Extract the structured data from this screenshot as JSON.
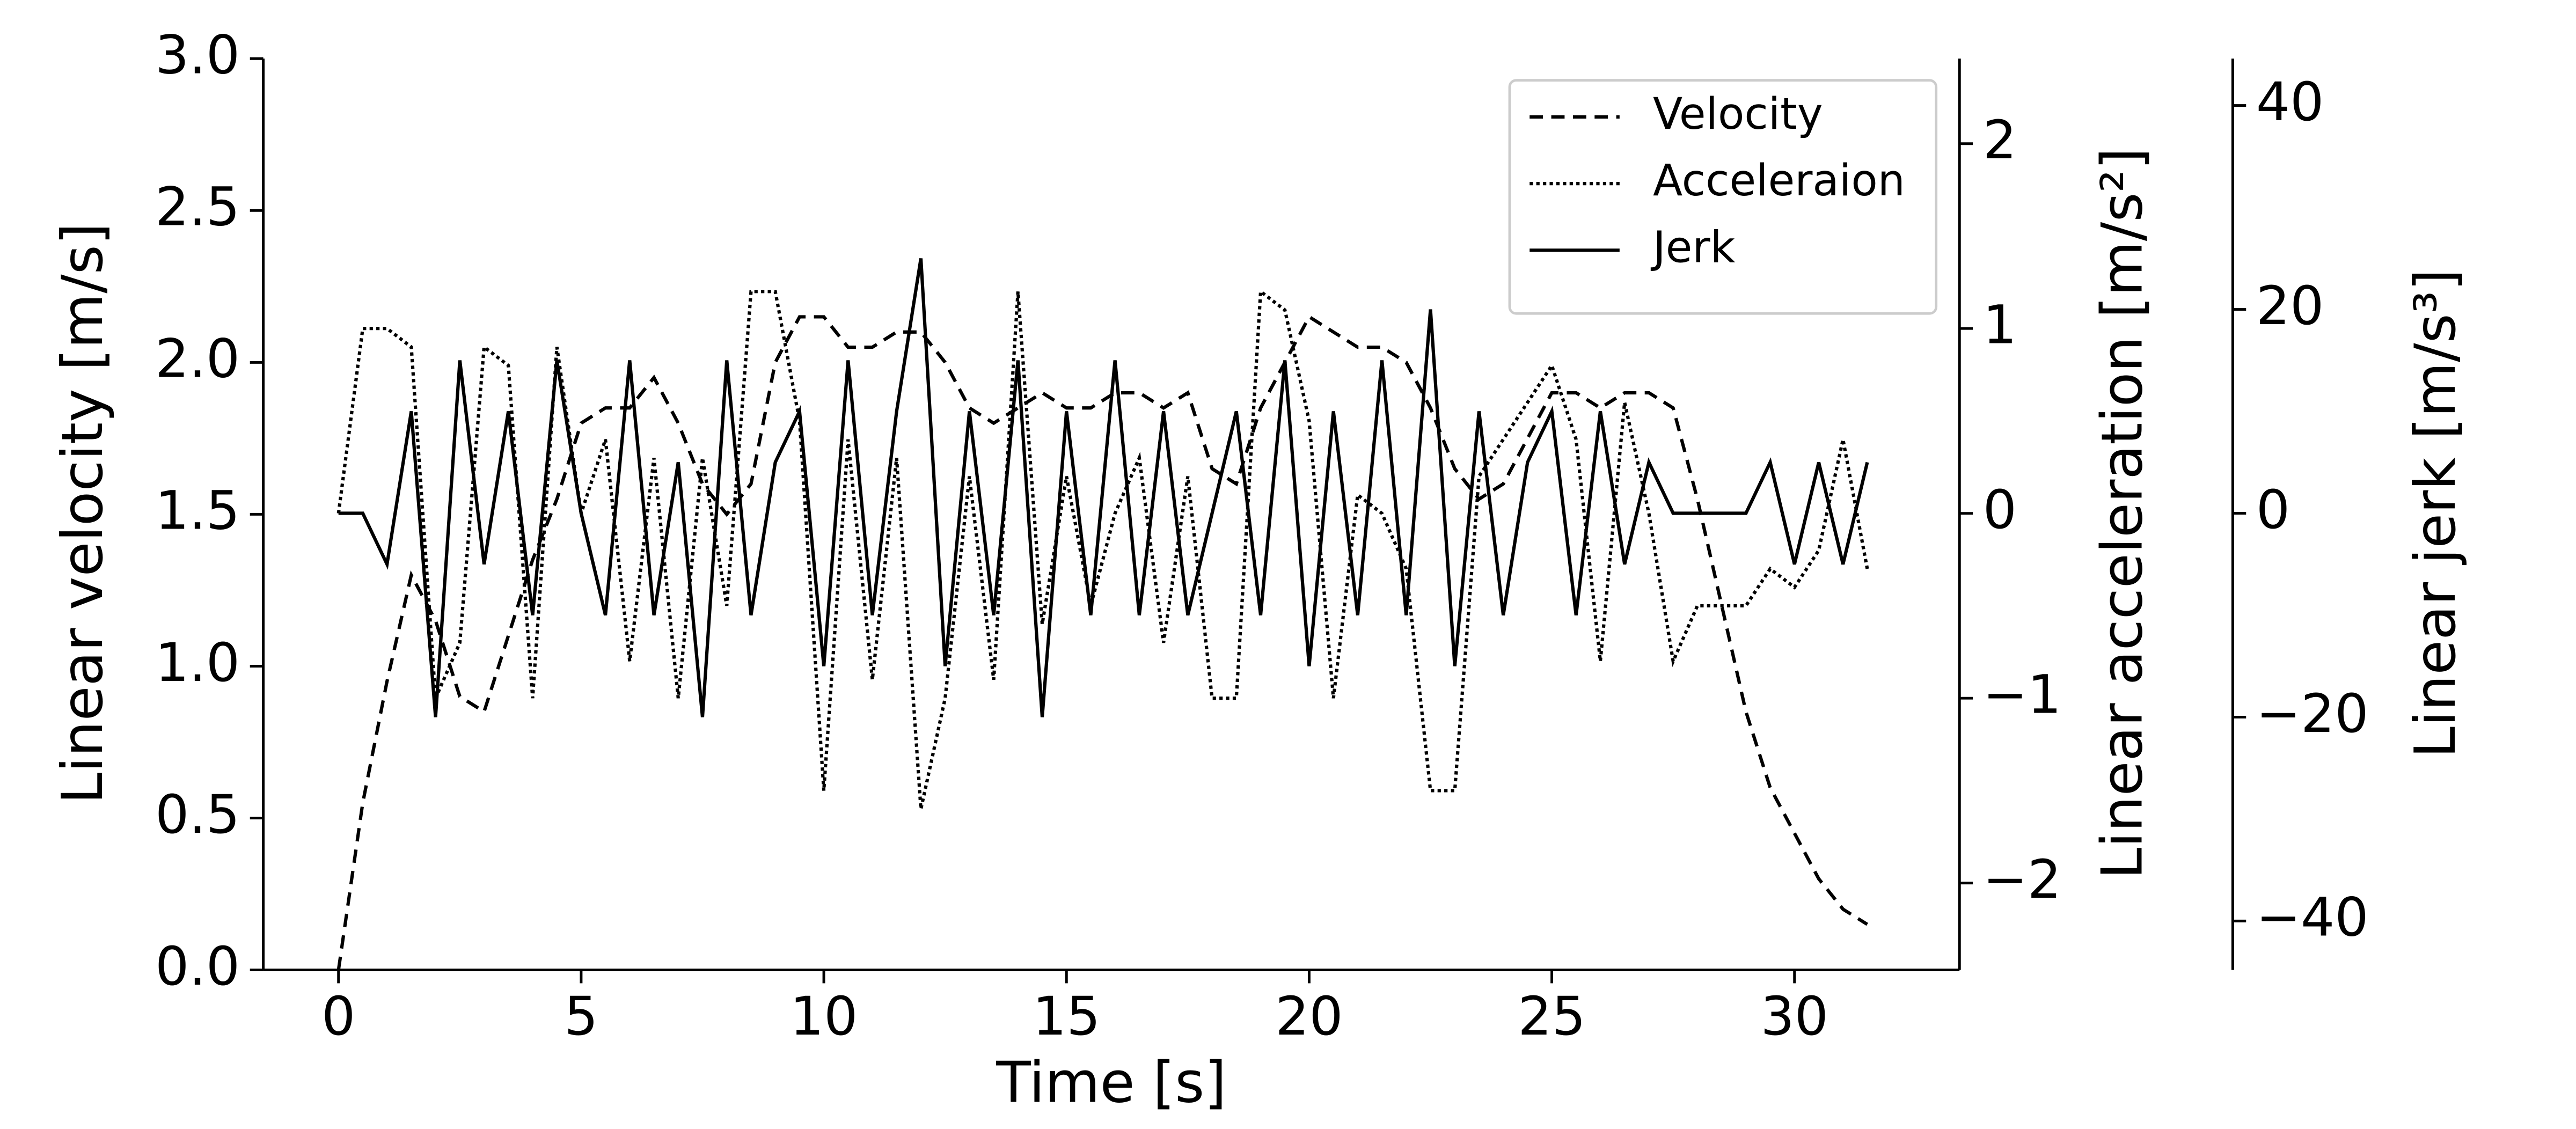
{
  "chart_data": {
    "type": "line",
    "xlabel": "Time [s]",
    "ylabel": "Linear velocity [m/s]",
    "y2label": "Linear acceleration [m/s²]",
    "y3label": "Linear jerk [m/s³]",
    "x": [
      0,
      0.5,
      1,
      1.5,
      2,
      2.5,
      3,
      3.5,
      4,
      4.5,
      5,
      5.5,
      6,
      6.5,
      7,
      7.5,
      8,
      8.5,
      9,
      9.5,
      10,
      10.5,
      11,
      11.5,
      12,
      12.5,
      13,
      13.5,
      14,
      14.5,
      15,
      15.5,
      16,
      16.5,
      17,
      17.5,
      18,
      18.5,
      19,
      19.5,
      20,
      20.5,
      21,
      21.5,
      22,
      22.5,
      23,
      23.5,
      24,
      24.5,
      25,
      25.5,
      26,
      26.5,
      27,
      27.5,
      28,
      28.5,
      29,
      29.5,
      30,
      30.5,
      31,
      31.5
    ],
    "series": [
      {
        "name": "Velocity",
        "color": "#000000",
        "dash": "8,5",
        "axis": "y",
        "values": [
          0,
          0.55,
          0.95,
          1.3,
          1.15,
          0.9,
          0.85,
          1.1,
          1.35,
          1.55,
          1.8,
          1.85,
          1.85,
          1.95,
          1.8,
          1.6,
          1.5,
          1.6,
          2.0,
          2.15,
          2.15,
          2.05,
          2.05,
          2.1,
          2.1,
          2.0,
          1.85,
          1.8,
          1.85,
          1.9,
          1.85,
          1.85,
          1.9,
          1.9,
          1.85,
          1.9,
          1.65,
          1.6,
          1.85,
          2.0,
          2.15,
          2.1,
          2.05,
          2.05,
          2.0,
          1.85,
          1.65,
          1.55,
          1.6,
          1.75,
          1.9,
          1.9,
          1.85,
          1.9,
          1.9,
          1.85,
          1.55,
          1.2,
          0.85,
          0.6,
          0.45,
          0.3,
          0.2,
          0.15
        ]
      },
      {
        "name": "Acceleraion",
        "color": "#000000",
        "dash": "2,2",
        "axis": "y2",
        "values": [
          0,
          1.0,
          1.0,
          0.9,
          -1.0,
          -0.7,
          0.9,
          0.8,
          -1.0,
          0.9,
          0,
          0.4,
          -0.8,
          0.3,
          -1.0,
          0.3,
          -0.5,
          1.2,
          1.2,
          0.5,
          -1.5,
          0.4,
          -0.9,
          0.3,
          -1.6,
          -1.0,
          0.2,
          -0.9,
          1.2,
          -0.6,
          0.2,
          -0.5,
          0,
          0.3,
          -0.7,
          0.2,
          -1.0,
          -1.0,
          1.2,
          1.1,
          0.5,
          -1.0,
          0.1,
          0,
          -0.3,
          -1.5,
          -1.5,
          0.2,
          0.4,
          0.6,
          0.8,
          0.4,
          -0.8,
          0.6,
          0,
          -0.8,
          -0.5,
          -0.5,
          -0.5,
          -0.3,
          -0.4,
          -0.2,
          0.4,
          -0.3
        ]
      },
      {
        "name": "Jerk",
        "color": "#000000",
        "dash": "none",
        "axis": "y3",
        "values": [
          0,
          0,
          -5,
          10,
          -20,
          15,
          -5,
          10,
          -10,
          15,
          0,
          -10,
          15,
          -10,
          5,
          -20,
          15,
          -10,
          5,
          10,
          -15,
          15,
          -10,
          10,
          25,
          -15,
          10,
          -10,
          15,
          -20,
          10,
          -10,
          15,
          -10,
          10,
          -10,
          0,
          10,
          -10,
          15,
          -15,
          10,
          -10,
          15,
          -10,
          20,
          -15,
          10,
          -10,
          5,
          10,
          -10,
          10,
          -5,
          5,
          0,
          0,
          0,
          0,
          5,
          -5,
          5,
          -5,
          5
        ]
      }
    ],
    "xlim": [
      -1.55,
      33.4
    ],
    "xticks": [
      0,
      5,
      10,
      15,
      20,
      25,
      30
    ],
    "ylim": [
      0,
      3
    ],
    "yticks": [
      {
        "value": 0,
        "label": "0.0"
      },
      0.5,
      {
        "value": 1,
        "label": "1.0"
      },
      1.5,
      {
        "value": 2,
        "label": "2.0"
      },
      2.5,
      {
        "value": 3,
        "label": "3.0"
      }
    ],
    "y2lim": [
      -2.47,
      2.46
    ],
    "y2ticks": [
      {
        "value": -2,
        "label": "−2"
      },
      {
        "value": -1,
        "label": "−1"
      },
      0,
      1,
      2
    ],
    "y3lim": [
      -44.8,
      44.6
    ],
    "y3ticks": [
      {
        "value": -40,
        "label": "−40"
      },
      {
        "value": -20,
        "label": "−20"
      },
      0,
      20,
      40
    ],
    "legend": "upper right"
  }
}
